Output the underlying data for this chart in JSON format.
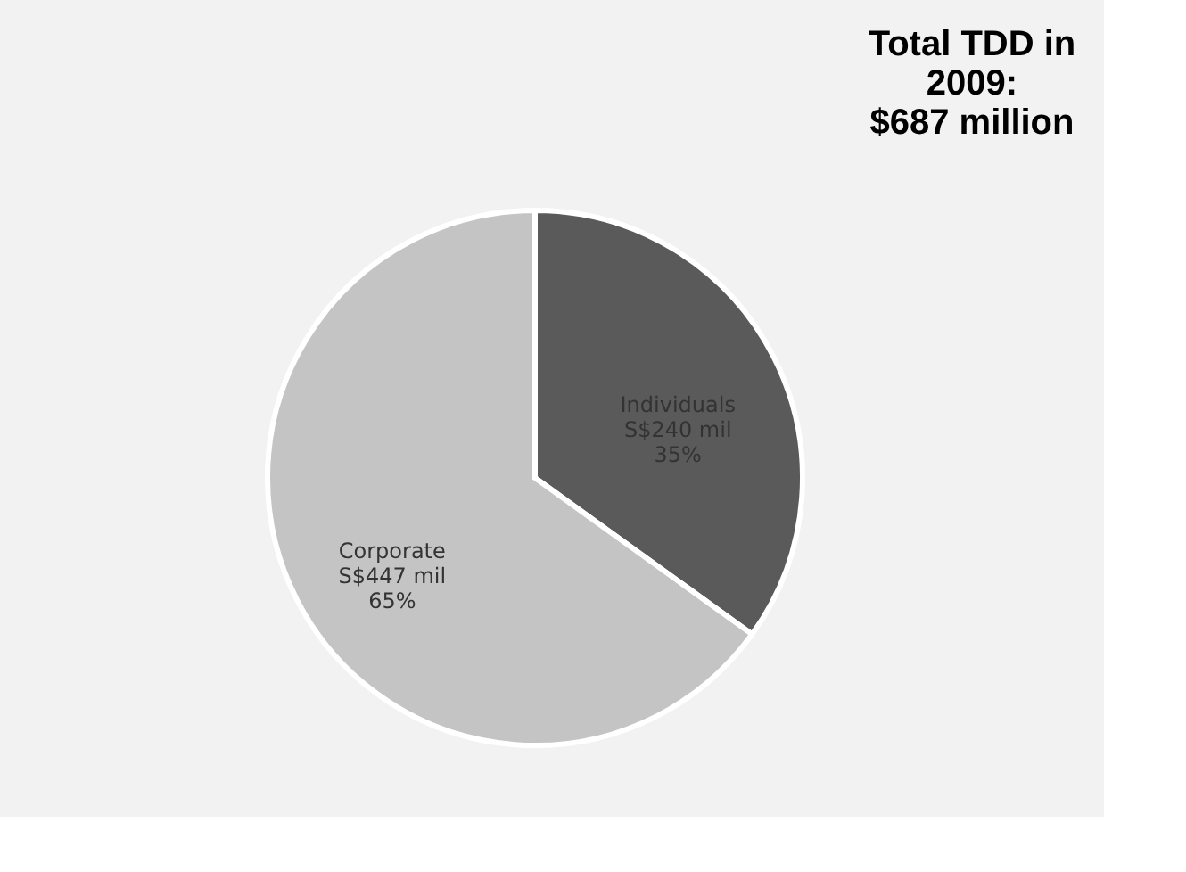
{
  "chart_data": {
    "type": "pie",
    "title": "Total TDD in\n2009:\n$687 million",
    "categories": [
      "Individuals",
      "Corporate"
    ],
    "values": [
      240,
      447
    ],
    "colors": [
      "#5a5a5a",
      "#c4c4c4"
    ],
    "value_labels": [
      "S$240 mil\n35%",
      "S$447  mil\n65%"
    ],
    "legend": false
  }
}
